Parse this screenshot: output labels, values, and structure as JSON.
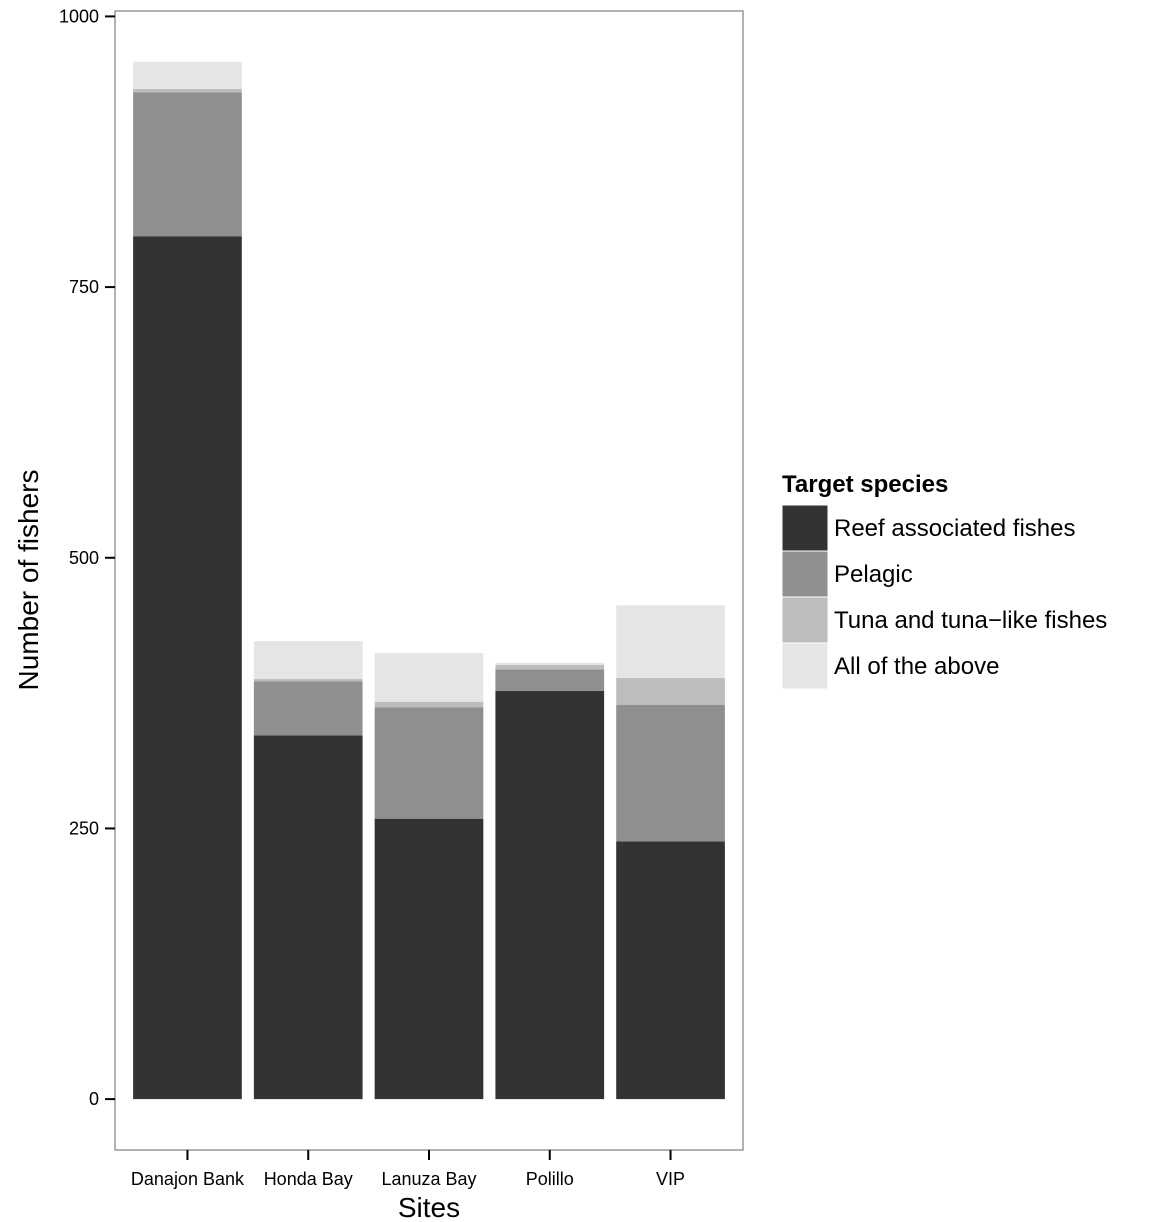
{
  "chart_data": {
    "type": "bar",
    "stacked": true,
    "categories": [
      "Danajon Bank",
      "Honda Bay",
      "Lanuza Bay",
      "Polillo",
      "VIP"
    ],
    "series": [
      {
        "name": "Reef associated fishes",
        "color": "#333333",
        "values": [
          797,
          336,
          259,
          377,
          238
        ]
      },
      {
        "name": "Pelagic",
        "color": "#8f8f8f",
        "values": [
          133,
          50,
          103,
          20,
          126
        ]
      },
      {
        "name": "Tuna and tuna−like fishes",
        "color": "#bdbdbd",
        "values": [
          3,
          2,
          5,
          4,
          25
        ]
      },
      {
        "name": "All of the above",
        "color": "#e5e5e5",
        "values": [
          25,
          35,
          45,
          2,
          67
        ]
      }
    ],
    "xlabel": "Sites",
    "ylabel": "Number of fishers",
    "ylim": [
      -47,
      1005
    ],
    "yticks": [
      0,
      250,
      500,
      750,
      1000
    ],
    "legend": {
      "title": "Target species",
      "position": "right"
    },
    "grid": false
  }
}
